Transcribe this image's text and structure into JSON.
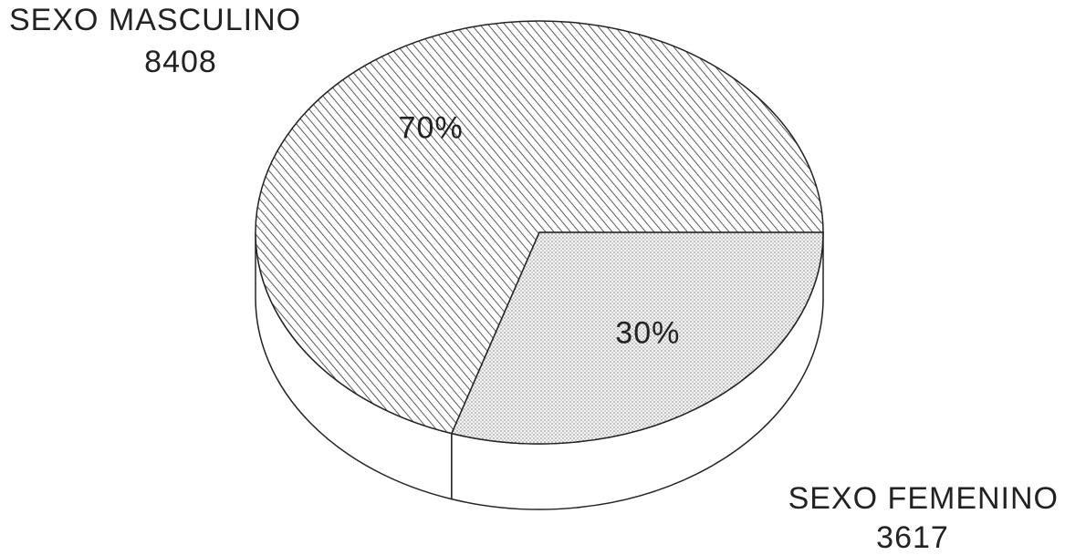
{
  "chart_data": {
    "type": "pie3d",
    "categories": [
      "SEXO MASCULINO",
      "SEXO FEMENINO"
    ],
    "counts": [
      "8408",
      "3617"
    ],
    "values": [
      70,
      30
    ],
    "value_labels": [
      "70%",
      "30%"
    ],
    "fills": [
      "hatch",
      "dots"
    ]
  }
}
